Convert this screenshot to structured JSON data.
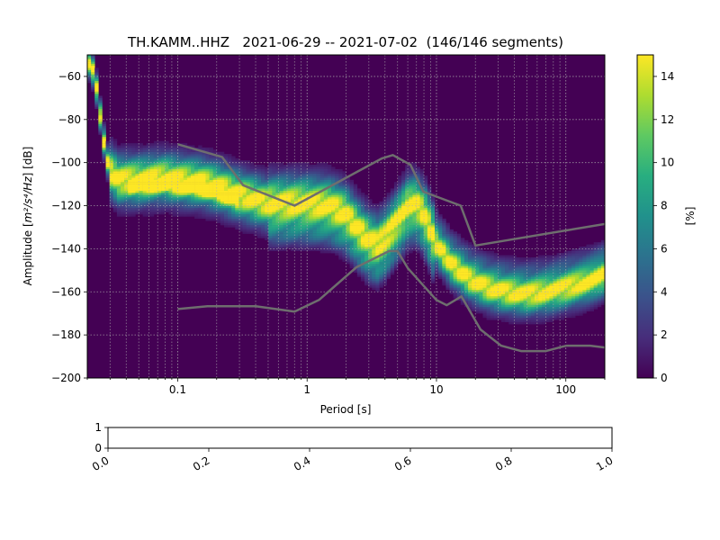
{
  "chart_data": [
    {
      "type": "heatmap",
      "title": "TH.KAMM..HHZ   2021-06-29 -- 2021-07-02  (146/146 segments)",
      "xlabel": "Period [s]",
      "ylabel_prefix": "Amplitude [",
      "ylabel_math": "m²/s⁴/Hz",
      "ylabel_suffix": "] [dB]",
      "x_scale": "log",
      "xlim": [
        0.02,
        200
      ],
      "ylim": [
        -200,
        -50
      ],
      "x_ticks": [
        {
          "value": 0.1,
          "label": "0.1"
        },
        {
          "value": 1,
          "label": "1"
        },
        {
          "value": 10,
          "label": "10"
        },
        {
          "value": 100,
          "label": "100"
        }
      ],
      "y_ticks": [
        {
          "value": -60,
          "label": "−60"
        },
        {
          "value": -80,
          "label": "−80"
        },
        {
          "value": -100,
          "label": "−100"
        },
        {
          "value": -120,
          "label": "−120"
        },
        {
          "value": -140,
          "label": "−140"
        },
        {
          "value": -160,
          "label": "−160"
        },
        {
          "value": -180,
          "label": "−180"
        },
        {
          "value": -200,
          "label": "−200"
        }
      ],
      "grid": true,
      "colormap": "viridis",
      "colorbar": {
        "label": "[%]",
        "range": [
          0,
          15
        ],
        "ticks": [
          {
            "value": 0,
            "label": "0"
          },
          {
            "value": 2,
            "label": "2"
          },
          {
            "value": 4,
            "label": "4"
          },
          {
            "value": 6,
            "label": "6"
          },
          {
            "value": 8,
            "label": "8"
          },
          {
            "value": 10,
            "label": "10"
          },
          {
            "value": 12,
            "label": "12"
          },
          {
            "value": 14,
            "label": "14"
          }
        ]
      },
      "mode_path": [
        [
          0.02,
          -52
        ],
        [
          0.022,
          -57
        ],
        [
          0.024,
          -68
        ],
        [
          0.026,
          -85
        ],
        [
          0.028,
          -97
        ],
        [
          0.03,
          -104
        ],
        [
          0.035,
          -108
        ],
        [
          0.05,
          -108
        ],
        [
          0.08,
          -107
        ],
        [
          0.1,
          -108
        ],
        [
          0.15,
          -109
        ],
        [
          0.2,
          -111
        ],
        [
          0.3,
          -115
        ],
        [
          0.5,
          -119
        ],
        [
          1.0,
          -119
        ],
        [
          1.5,
          -120
        ],
        [
          2.0,
          -124
        ],
        [
          2.5,
          -131
        ],
        [
          3.0,
          -136
        ],
        [
          3.5,
          -138
        ],
        [
          4.0,
          -135
        ],
        [
          5.0,
          -127
        ],
        [
          6.0,
          -120
        ],
        [
          7.0,
          -119
        ],
        [
          8.0,
          -124
        ],
        [
          10,
          -138
        ],
        [
          13,
          -147
        ],
        [
          18,
          -154
        ],
        [
          25,
          -158
        ],
        [
          35,
          -160
        ],
        [
          50,
          -161
        ],
        [
          70,
          -160
        ],
        [
          100,
          -158
        ],
        [
          150,
          -155
        ],
        [
          200,
          -152
        ]
      ],
      "noise_models": [
        {
          "model": "high",
          "points": [
            [
              0.1,
              -91.5
            ],
            [
              0.22,
              -97.4
            ],
            [
              0.32,
              -110.5
            ],
            [
              0.8,
              -120
            ],
            [
              3.8,
              -98
            ],
            [
              4.6,
              -96.5
            ],
            [
              6.3,
              -101
            ],
            [
              7.9,
              -113.5
            ],
            [
              15.4,
              -120
            ],
            [
              20,
              -138.5
            ],
            [
              354.8,
              -126
            ],
            [
              10000,
              -80
            ]
          ]
        },
        {
          "model": "low",
          "points": [
            [
              0.1,
              -168
            ],
            [
              0.17,
              -166.7
            ],
            [
              0.4,
              -166.7
            ],
            [
              0.8,
              -169.2
            ],
            [
              1.24,
              -163.7
            ],
            [
              2.4,
              -148.6
            ],
            [
              4.3,
              -141.1
            ],
            [
              5.0,
              -141.1
            ],
            [
              6.0,
              -149
            ],
            [
              10,
              -163.8
            ],
            [
              12,
              -166.2
            ],
            [
              15.6,
              -162.1
            ],
            [
              21.9,
              -177.5
            ],
            [
              31.6,
              -185
            ],
            [
              45,
              -187.5
            ],
            [
              70,
              -187.5
            ],
            [
              101,
              -185
            ],
            [
              154,
              -185
            ],
            [
              328,
              -187.5
            ],
            [
              600,
              -184.4
            ],
            [
              10000,
              -151.5
            ]
          ]
        }
      ]
    },
    {
      "type": "line",
      "title": "",
      "xlim": [
        0,
        1
      ],
      "ylim": [
        0,
        1
      ],
      "x_ticks": [
        {
          "value": 0.0,
          "label": "0.0"
        },
        {
          "value": 0.2,
          "label": "0.2"
        },
        {
          "value": 0.4,
          "label": "0.4"
        },
        {
          "value": 0.6,
          "label": "0.6"
        },
        {
          "value": 0.8,
          "label": "0.8"
        },
        {
          "value": 1.0,
          "label": "1.0"
        }
      ],
      "y_ticks": [
        {
          "value": 0,
          "label": "0"
        },
        {
          "value": 1,
          "label": "1"
        }
      ],
      "series": []
    }
  ]
}
